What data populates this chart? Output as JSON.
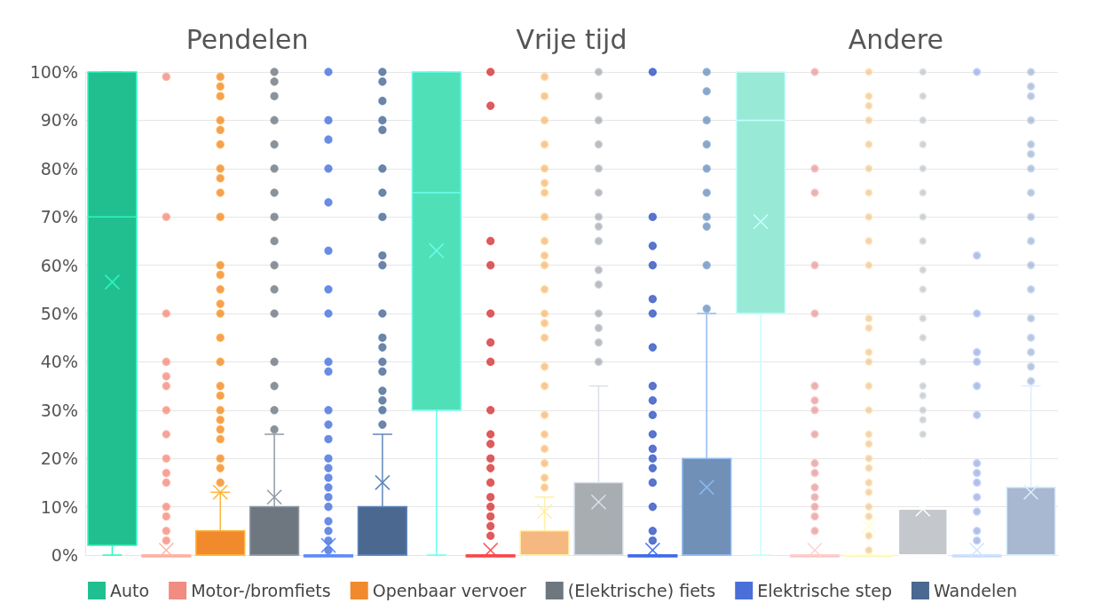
{
  "chart_data": {
    "type": "box",
    "categories": [
      "Pendelen",
      "Vrije tijd",
      "Andere"
    ],
    "ylim": [
      0,
      100
    ],
    "yticks": [
      {
        "value": 0,
        "label": "0%"
      },
      {
        "value": 10,
        "label": "10%"
      },
      {
        "value": 20,
        "label": "20%"
      },
      {
        "value": 30,
        "label": "30%"
      },
      {
        "value": 40,
        "label": "40%"
      },
      {
        "value": 50,
        "label": "50%"
      },
      {
        "value": 60,
        "label": "60%"
      },
      {
        "value": 70,
        "label": "70%"
      },
      {
        "value": 80,
        "label": "80%"
      },
      {
        "value": 90,
        "label": "90%"
      },
      {
        "value": 100,
        "label": "100%"
      }
    ],
    "grid": "y",
    "legend": "bottom",
    "marker": "circle",
    "series": [
      {
        "name": "Auto",
        "color": "#21bf90",
        "colors": [
          "#21bf90",
          "#50e0b8",
          "#98ead6"
        ],
        "boxes": [
          {
            "low": 0,
            "q1": 2,
            "median": 70,
            "q3": 100,
            "high": 100,
            "mean": 56.5
          },
          {
            "low": 0,
            "q1": 30,
            "median": 75,
            "q3": 100,
            "high": 100,
            "mean": 63
          },
          {
            "low": 0,
            "q1": 50,
            "median": 90,
            "q3": 100,
            "high": 100,
            "mean": 69
          }
        ]
      },
      {
        "name": "Motor-/bromfiets",
        "color": "#f08c80",
        "colors": [
          "#f08c80",
          "#c83a3a",
          "#e0a0a0"
        ],
        "boxes": [
          {
            "low": 0,
            "q1": 0,
            "median": 0,
            "q3": 0,
            "high": 0,
            "mean": 1,
            "outliers": [
              99,
              70,
              50,
              40,
              37,
              35,
              30,
              25,
              20,
              17,
              15,
              10,
              8,
              5,
              3
            ]
          },
          {
            "low": 0,
            "q1": 0,
            "median": 0,
            "q3": 0,
            "high": 0,
            "mean": 1,
            "outliers": [
              100,
              93,
              65,
              60,
              50,
              44,
              40,
              30,
              25,
              23,
              20,
              18,
              15,
              12,
              10,
              8,
              6,
              4
            ]
          },
          {
            "low": 0,
            "q1": 0,
            "median": 0,
            "q3": 0,
            "high": 0,
            "mean": 1,
            "outliers": [
              100,
              80,
              75,
              60,
              50,
              35,
              32,
              30,
              25,
              19,
              17,
              14,
              12,
              10,
              8,
              5
            ]
          }
        ]
      },
      {
        "name": "Openbaar vervoer",
        "color": "#f08a2c",
        "colors": [
          "#f08a2c",
          "#f5b880",
          "#f0c8a0"
        ],
        "boxes": [
          {
            "low": 0,
            "q1": 0,
            "median": 0,
            "q3": 5,
            "high": 13,
            "mean": 13,
            "outliers": [
              99,
              97,
              95,
              90,
              88,
              85,
              80,
              78,
              75,
              70,
              60,
              58,
              55,
              52,
              50,
              45,
              40,
              35,
              33,
              30,
              28,
              26,
              24,
              20,
              18,
              15
            ]
          },
          {
            "low": 0,
            "q1": 0,
            "median": 0,
            "q3": 5,
            "high": 12,
            "mean": 9,
            "outliers": [
              99,
              95,
              90,
              85,
              80,
              77,
              75,
              70,
              65,
              62,
              60,
              55,
              50,
              48,
              45,
              39,
              35,
              29,
              25,
              22,
              19,
              16,
              14
            ]
          },
          {
            "low": 0,
            "q1": 0,
            "median": 0,
            "q3": 0,
            "high": 0,
            "mean": 6,
            "outliers": [
              100,
              95,
              93,
              90,
              85,
              80,
              75,
              70,
              65,
              60,
              49,
              47,
              42,
              40,
              35,
              30,
              25,
              23,
              20,
              18,
              15,
              13,
              10,
              8,
              4,
              1
            ]
          }
        ]
      },
      {
        "name": "(Elektrische) fiets",
        "color": "#6e7780",
        "colors": [
          "#6e7780",
          "#a8adb2",
          "#c4c8cc"
        ],
        "boxes": [
          {
            "low": 0,
            "q1": 0,
            "median": 0,
            "q3": 10,
            "high": 25,
            "mean": 12,
            "outliers": [
              100,
              98,
              95,
              90,
              85,
              80,
              75,
              70,
              65,
              60,
              55,
              50,
              40,
              35,
              30,
              26
            ]
          },
          {
            "low": 0,
            "q1": 0,
            "median": 0,
            "q3": 15,
            "high": 35,
            "mean": 11,
            "outliers": [
              100,
              95,
              90,
              85,
              80,
              75,
              70,
              68,
              65,
              59,
              56,
              50,
              47,
              44,
              40
            ]
          },
          {
            "low": 0,
            "q1": 0,
            "median": 0,
            "q3": 9.5,
            "high": 23,
            "mean": 9.5,
            "outliers": [
              100,
              95,
              90,
              85,
              80,
              75,
              70,
              65,
              59,
              55,
              49,
              45,
              40,
              35,
              33,
              30,
              28,
              25
            ]
          }
        ]
      },
      {
        "name": "Elektrische step",
        "color": "#4a6fd8",
        "colors": [
          "#4a6fd0",
          "#3454b8",
          "#a0b0e0"
        ],
        "boxes": [
          {
            "low": 0,
            "q1": 0,
            "median": 0,
            "q3": 0,
            "high": 0,
            "mean": 2,
            "outliers": [
              100,
              90,
              86,
              80,
              73,
              63,
              55,
              50,
              40,
              38,
              30,
              27,
              24,
              20,
              18,
              16,
              14,
              12,
              10,
              7,
              5,
              3,
              1
            ]
          },
          {
            "low": 0,
            "q1": 0,
            "median": 0,
            "q3": 0,
            "high": 0,
            "mean": 1,
            "outliers": [
              100,
              70,
              64,
              60,
              53,
              50,
              43,
              35,
              32,
              29,
              25,
              22,
              20,
              18,
              15,
              10,
              5,
              3
            ]
          },
          {
            "low": 0,
            "q1": 0,
            "median": 0,
            "q3": 0,
            "high": 0,
            "mean": 1,
            "outliers": [
              100,
              62,
              50,
              42,
              40,
              35,
              29,
              19,
              17,
              15,
              12,
              9,
              5,
              3
            ]
          }
        ]
      },
      {
        "name": "Wandelen",
        "color": "#4a6890",
        "colors": [
          "#4a6890",
          "#7090b8",
          "#a8b8d0"
        ],
        "boxes": [
          {
            "low": 0,
            "q1": 0,
            "median": 0,
            "q3": 10,
            "high": 25,
            "mean": 15,
            "outliers": [
              100,
              98,
              94,
              90,
              88,
              80,
              75,
              70,
              62,
              60,
              50,
              45,
              43,
              40,
              38,
              34,
              32,
              30,
              27
            ]
          },
          {
            "low": 0,
            "q1": 0,
            "median": 0,
            "q3": 20,
            "high": 50,
            "mean": 14,
            "outliers": [
              100,
              96,
              90,
              85,
              80,
              75,
              70,
              68,
              60,
              51
            ]
          },
          {
            "low": 0,
            "q1": 0,
            "median": 0,
            "q3": 14,
            "high": 35,
            "mean": 13,
            "outliers": [
              100,
              97,
              95,
              90,
              85,
              83,
              80,
              75,
              70,
              65,
              60,
              55,
              49,
              45,
              42,
              39,
              36
            ]
          }
        ]
      }
    ]
  }
}
